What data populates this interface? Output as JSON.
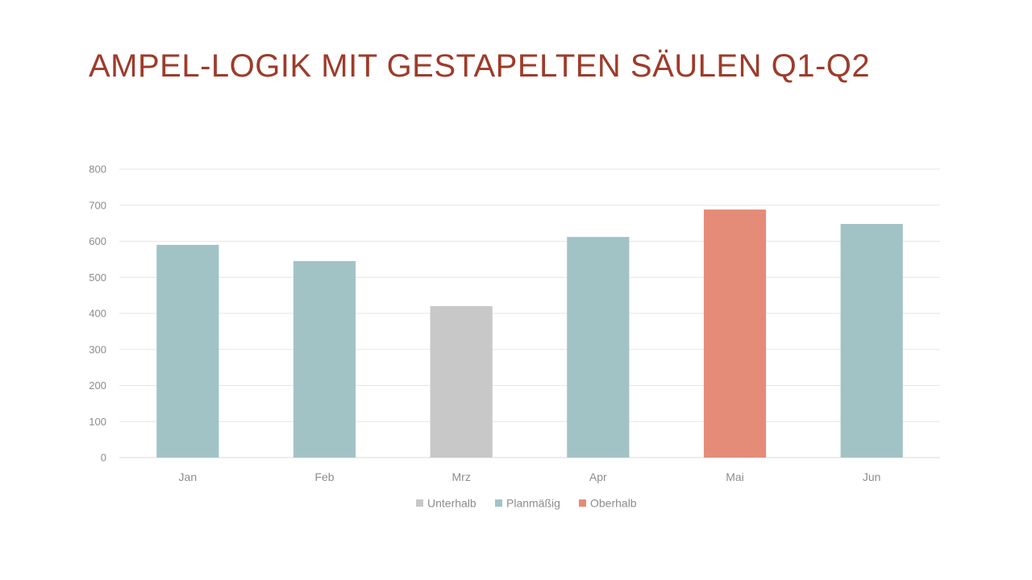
{
  "slide": {
    "title": "Ampel-Logik mit gestapelten Säulen Q1-Q2"
  },
  "chart_data": {
    "type": "bar",
    "stacked": true,
    "categories": [
      "Jan",
      "Feb",
      "Mrz",
      "Apr",
      "Mai",
      "Jun"
    ],
    "series": [
      {
        "name": "Unterhalb",
        "color": "#c8c8c8",
        "values": [
          0,
          0,
          420,
          0,
          0,
          0
        ]
      },
      {
        "name": "Planmäßig",
        "color": "#a2c3c6",
        "values": [
          590,
          545,
          0,
          612,
          0,
          648
        ]
      },
      {
        "name": "Oberhalb",
        "color": "#e48c78",
        "values": [
          0,
          0,
          0,
          0,
          688,
          0
        ]
      }
    ],
    "title": "",
    "xlabel": "",
    "ylabel": "",
    "ylim": [
      0,
      800
    ],
    "yticks": [
      0,
      100,
      200,
      300,
      400,
      500,
      600,
      700,
      800
    ],
    "grid": true,
    "legend": "bottom-center"
  }
}
